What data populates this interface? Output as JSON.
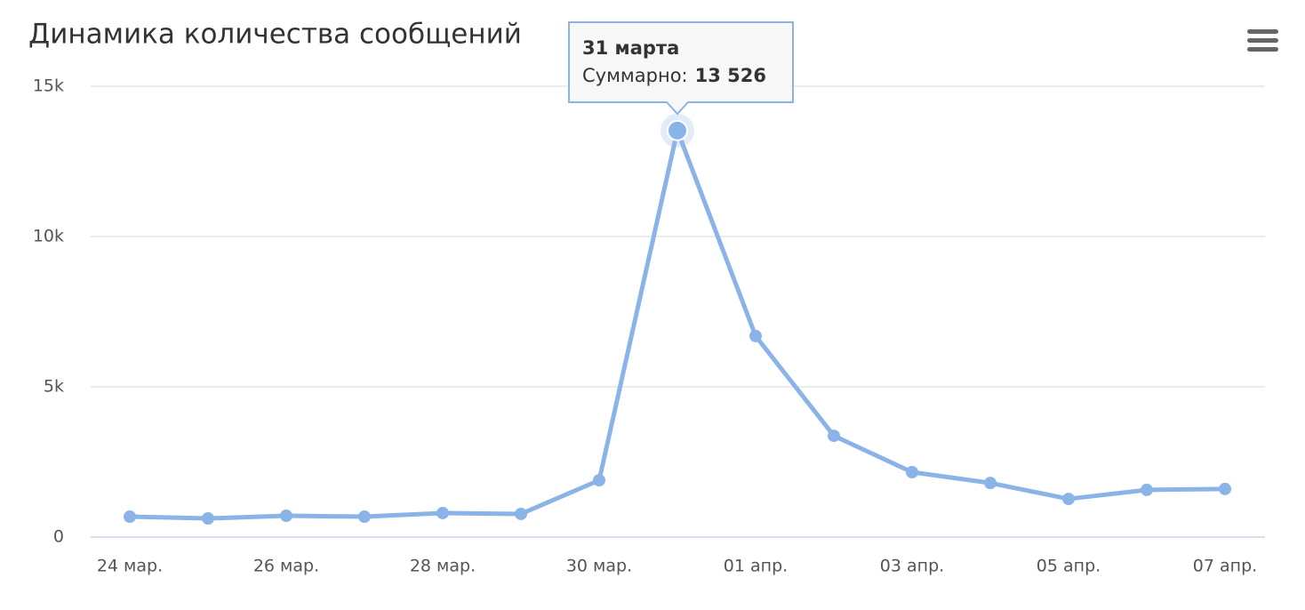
{
  "chart_data": {
    "type": "line",
    "title": "Динамика количества сообщений",
    "categories": [
      "24 мар.",
      null,
      "26 мар.",
      null,
      "28 мар.",
      null,
      "30 мар.",
      null,
      "01 апр.",
      null,
      "03 апр.",
      null,
      "05 апр.",
      null,
      "07 апр."
    ],
    "series": [
      {
        "name": "Суммарно:",
        "color": "#8ab4e8",
        "values": [
          680,
          620,
          710,
          680,
          800,
          770,
          1890,
          13526,
          6690,
          3370,
          2160,
          1800,
          1270,
          1570,
          1600
        ],
        "value_labels": [
          null,
          null,
          null,
          null,
          null,
          null,
          null,
          "13 526",
          null,
          null,
          null,
          null,
          null,
          null,
          null
        ]
      }
    ],
    "ylim": [
      0,
      15000
    ],
    "yticks": [
      0,
      {
        "value": 5000,
        "label": "5k"
      },
      {
        "value": 10000,
        "label": "10k"
      },
      {
        "value": 15000,
        "label": "15k"
      }
    ],
    "grid": true,
    "tooltip": {
      "title": "31 марта",
      "index": 7
    }
  }
}
